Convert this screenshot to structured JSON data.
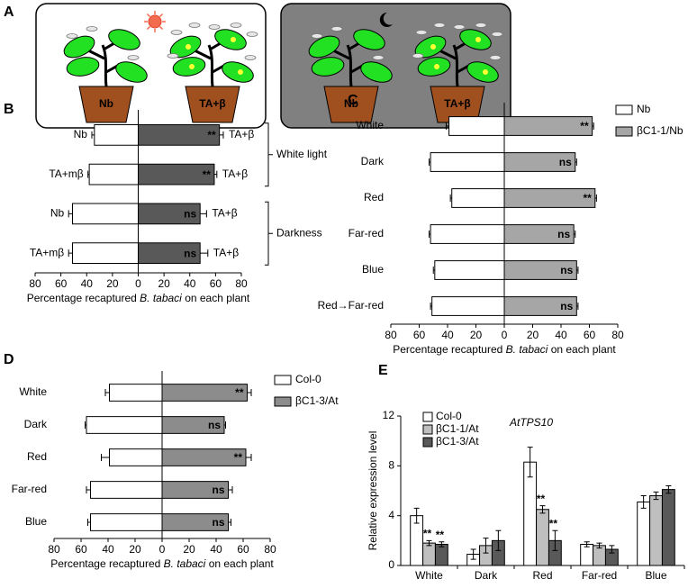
{
  "illustration": {
    "panel": "A",
    "pot_labels": [
      "Nb",
      "TA+β",
      "Nb",
      "TA+β"
    ]
  },
  "chart_data": [
    {
      "type": "butterfly",
      "panel": "B",
      "xlabel": [
        "Percentage recaptured ",
        "B. tabaci",
        " on each plant"
      ],
      "xlim": [
        -80,
        80
      ],
      "xticks": [
        {
          "value": -80,
          "label": "80"
        },
        {
          "value": -60,
          "label": "60"
        },
        {
          "value": -40,
          "label": "40"
        },
        {
          "value": -20,
          "label": "20"
        },
        0,
        20,
        40,
        60,
        80
      ],
      "left_labels": [
        "Nb",
        "TA+mβ",
        "Nb",
        "TA+mβ"
      ],
      "right_labels": [
        "TA+β",
        "TA+β",
        "TA+β",
        "TA+β"
      ],
      "groups": [
        "White light",
        "Darkness"
      ],
      "series": [
        {
          "side": "left",
          "color": "#ffffff",
          "values": [
            34,
            38,
            51,
            51
          ],
          "errors": [
            2,
            1,
            3,
            3
          ]
        },
        {
          "side": "right",
          "color": "#595959",
          "values": [
            63,
            59,
            48,
            48
          ],
          "errors": [
            3,
            2,
            5,
            6
          ],
          "sig": [
            "**",
            "**",
            "ns",
            "ns"
          ]
        }
      ]
    },
    {
      "type": "butterfly",
      "panel": "C",
      "xlabel": [
        "Percentage recaptured ",
        "B. tabaci",
        " on each plant"
      ],
      "xlim": [
        -80,
        80
      ],
      "xticks": [
        {
          "value": -80,
          "label": "80"
        },
        {
          "value": -60,
          "label": "60"
        },
        {
          "value": -40,
          "label": "40"
        },
        {
          "value": -20,
          "label": "20"
        },
        0,
        20,
        40,
        60,
        80
      ],
      "categories": [
        "White",
        "Dark",
        "Red",
        "Far-red",
        "Blue",
        "Red→Far-red"
      ],
      "series": [
        {
          "name": "Nb",
          "side": "left",
          "color": "#ffffff",
          "values": [
            39,
            52,
            37,
            52,
            49,
            51
          ],
          "errors": [
            2,
            1,
            1,
            1,
            1,
            1
          ]
        },
        {
          "name": "βC1-1/Nb",
          "side": "right",
          "color": "#a6a6a6",
          "values": [
            62,
            50,
            64,
            49,
            51,
            51
          ],
          "errors": [
            1,
            1,
            1,
            1,
            1,
            1
          ],
          "sig": [
            "**",
            "ns",
            "**",
            "ns",
            "ns",
            "ns"
          ]
        }
      ]
    },
    {
      "type": "butterfly",
      "panel": "D",
      "xlabel": [
        "Percentage recaptured ",
        "B. tabaci",
        " on each plant"
      ],
      "xlim": [
        -80,
        80
      ],
      "xticks": [
        {
          "value": -80,
          "label": "80"
        },
        {
          "value": -60,
          "label": "60"
        },
        {
          "value": -40,
          "label": "40"
        },
        {
          "value": -20,
          "label": "20"
        },
        0,
        20,
        40,
        60,
        80
      ],
      "categories": [
        "White",
        "Dark",
        "Red",
        "Far-red",
        "Blue"
      ],
      "series": [
        {
          "name": "Col-0",
          "side": "left",
          "color": "#ffffff",
          "values": [
            39,
            56,
            39,
            53,
            53
          ],
          "errors": [
            3,
            1,
            6,
            3,
            2
          ]
        },
        {
          "name": "βC1-3/At",
          "side": "right",
          "color": "#8c8c8c",
          "values": [
            63,
            46,
            62,
            49,
            49
          ],
          "errors": [
            3,
            1,
            4,
            3,
            2
          ],
          "sig": [
            "**",
            "ns",
            "**",
            "ns",
            "ns"
          ]
        }
      ]
    },
    {
      "type": "grouped-bar",
      "panel": "E",
      "title": "AtTPS10",
      "ylabel": "Relative expression level",
      "ylim": [
        0,
        12
      ],
      "yticks": [
        0,
        4,
        8,
        12
      ],
      "categories": [
        "White",
        "Dark",
        "Red",
        "Far-red",
        "Blue"
      ],
      "series": [
        {
          "name": "Col-0",
          "color": "#ffffff",
          "values": [
            4.0,
            0.9,
            8.3,
            1.7,
            5.1
          ],
          "errors": [
            0.6,
            0.4,
            1.2,
            0.2,
            0.5
          ],
          "sig": [
            null,
            null,
            null,
            null,
            null
          ]
        },
        {
          "name": "βC1-1/At",
          "color": "#bfbfbf",
          "values": [
            1.8,
            1.6,
            4.5,
            1.6,
            5.6
          ],
          "errors": [
            0.2,
            0.6,
            0.3,
            0.2,
            0.3
          ],
          "sig": [
            "**",
            null,
            "**",
            null,
            null
          ]
        },
        {
          "name": "βC1-3/At",
          "color": "#595959",
          "values": [
            1.7,
            2.0,
            2.0,
            1.3,
            6.1
          ],
          "errors": [
            0.2,
            0.8,
            0.8,
            0.3,
            0.3
          ],
          "sig": [
            "**",
            null,
            "**",
            null,
            null
          ]
        }
      ]
    }
  ]
}
